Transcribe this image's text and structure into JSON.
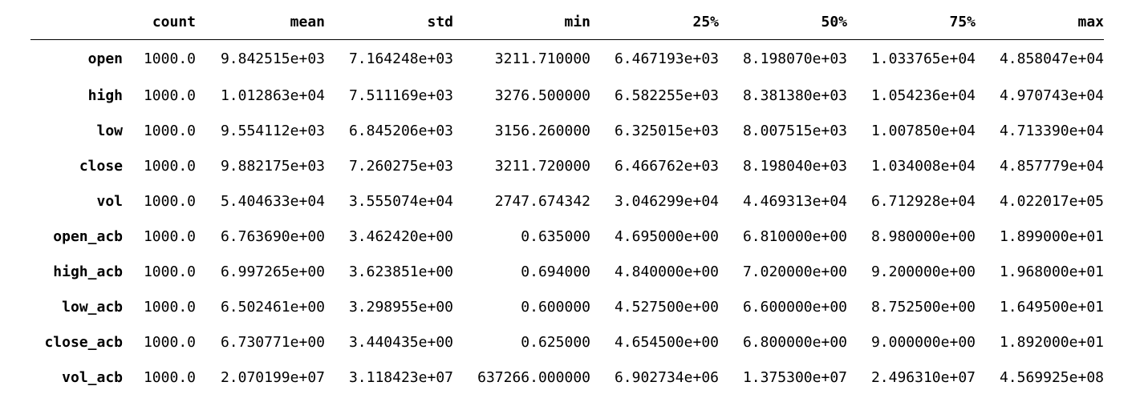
{
  "table": {
    "columns": [
      "count",
      "mean",
      "std",
      "min",
      "25%",
      "50%",
      "75%",
      "max"
    ],
    "rows": [
      {
        "label": "open",
        "cells": [
          "1000.0",
          "9.842515e+03",
          "7.164248e+03",
          "3211.710000",
          "6.467193e+03",
          "8.198070e+03",
          "1.033765e+04",
          "4.858047e+04"
        ]
      },
      {
        "label": "high",
        "cells": [
          "1000.0",
          "1.012863e+04",
          "7.511169e+03",
          "3276.500000",
          "6.582255e+03",
          "8.381380e+03",
          "1.054236e+04",
          "4.970743e+04"
        ]
      },
      {
        "label": "low",
        "cells": [
          "1000.0",
          "9.554112e+03",
          "6.845206e+03",
          "3156.260000",
          "6.325015e+03",
          "8.007515e+03",
          "1.007850e+04",
          "4.713390e+04"
        ]
      },
      {
        "label": "close",
        "cells": [
          "1000.0",
          "9.882175e+03",
          "7.260275e+03",
          "3211.720000",
          "6.466762e+03",
          "8.198040e+03",
          "1.034008e+04",
          "4.857779e+04"
        ]
      },
      {
        "label": "vol",
        "cells": [
          "1000.0",
          "5.404633e+04",
          "3.555074e+04",
          "2747.674342",
          "3.046299e+04",
          "4.469313e+04",
          "6.712928e+04",
          "4.022017e+05"
        ]
      },
      {
        "label": "open_acb",
        "cells": [
          "1000.0",
          "6.763690e+00",
          "3.462420e+00",
          "0.635000",
          "4.695000e+00",
          "6.810000e+00",
          "8.980000e+00",
          "1.899000e+01"
        ]
      },
      {
        "label": "high_acb",
        "cells": [
          "1000.0",
          "6.997265e+00",
          "3.623851e+00",
          "0.694000",
          "4.840000e+00",
          "7.020000e+00",
          "9.200000e+00",
          "1.968000e+01"
        ]
      },
      {
        "label": "low_acb",
        "cells": [
          "1000.0",
          "6.502461e+00",
          "3.298955e+00",
          "0.600000",
          "4.527500e+00",
          "6.600000e+00",
          "8.752500e+00",
          "1.649500e+01"
        ]
      },
      {
        "label": "close_acb",
        "cells": [
          "1000.0",
          "6.730771e+00",
          "3.440435e+00",
          "0.625000",
          "4.654500e+00",
          "6.800000e+00",
          "9.000000e+00",
          "1.892000e+01"
        ]
      },
      {
        "label": "vol_acb",
        "cells": [
          "1000.0",
          "2.070199e+07",
          "3.118423e+07",
          "637266.000000",
          "6.902734e+06",
          "1.375300e+07",
          "2.496310e+07",
          "4.569925e+08"
        ]
      }
    ]
  }
}
